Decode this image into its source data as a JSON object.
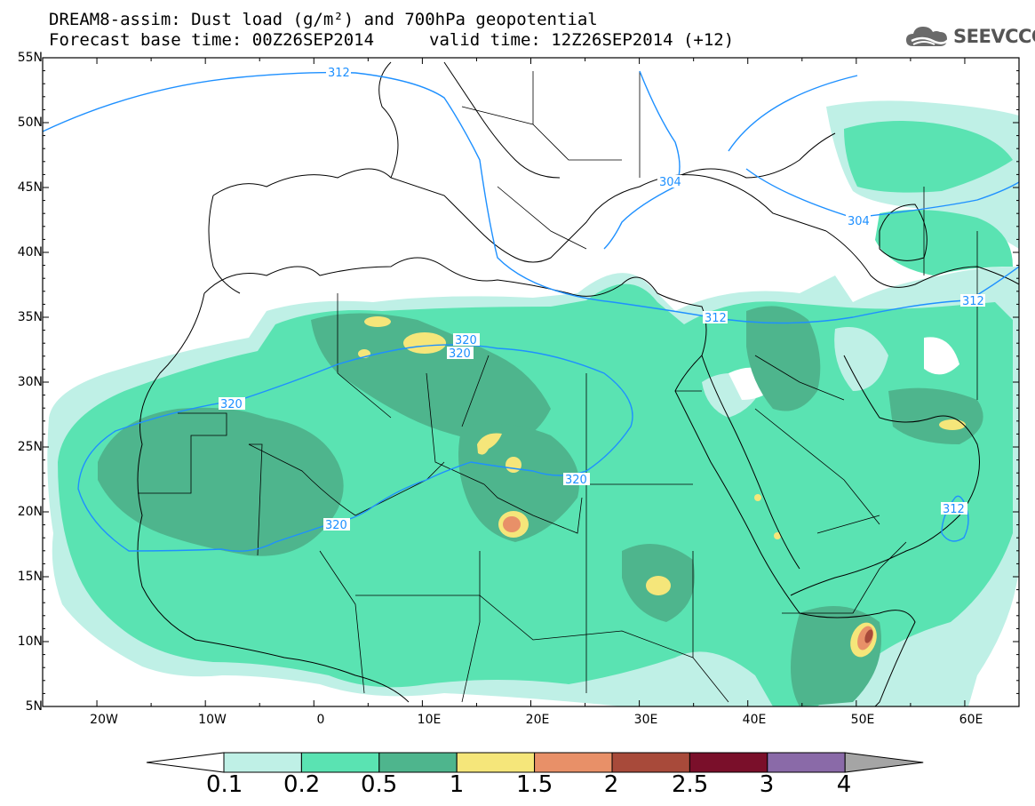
{
  "header": {
    "title_line1": "DREAM8-assim: Dust load (g/m²) and 700hPa geopotential",
    "title_line2": "Forecast base time: 00Z26SEP2014",
    "valid_time": "valid time: 12Z26SEP2014 (+12)",
    "logo_text": "SEEVCCC",
    "logo_icon": "cloud-icon"
  },
  "map": {
    "lat_labels": [
      "55N",
      "50N",
      "45N",
      "40N",
      "35N",
      "30N",
      "25N",
      "20N",
      "15N",
      "10N",
      "5N"
    ],
    "lon_labels": [
      "20W",
      "10W",
      "0",
      "10E",
      "20E",
      "30E",
      "40E",
      "50E",
      "60E"
    ],
    "lon_range": [
      -25,
      65
    ],
    "lat_range": [
      5,
      55
    ],
    "contour_labels": [
      "312",
      "304",
      "304",
      "312",
      "312",
      "320",
      "320",
      "320",
      "320",
      "320",
      "312"
    ],
    "contour_color": "#1e90ff"
  },
  "colorbar": {
    "labels": [
      "0.1",
      "0.2",
      "0.5",
      "1",
      "1.5",
      "2",
      "2.5",
      "3",
      "4"
    ],
    "colors": [
      "#ffffff",
      "#bff0e6",
      "#5ae3b2",
      "#4eb58d",
      "#f5e67a",
      "#e89068",
      "#a84a3a",
      "#7a0f2a",
      "#8a6aa8",
      "#a5a5a5"
    ]
  }
}
